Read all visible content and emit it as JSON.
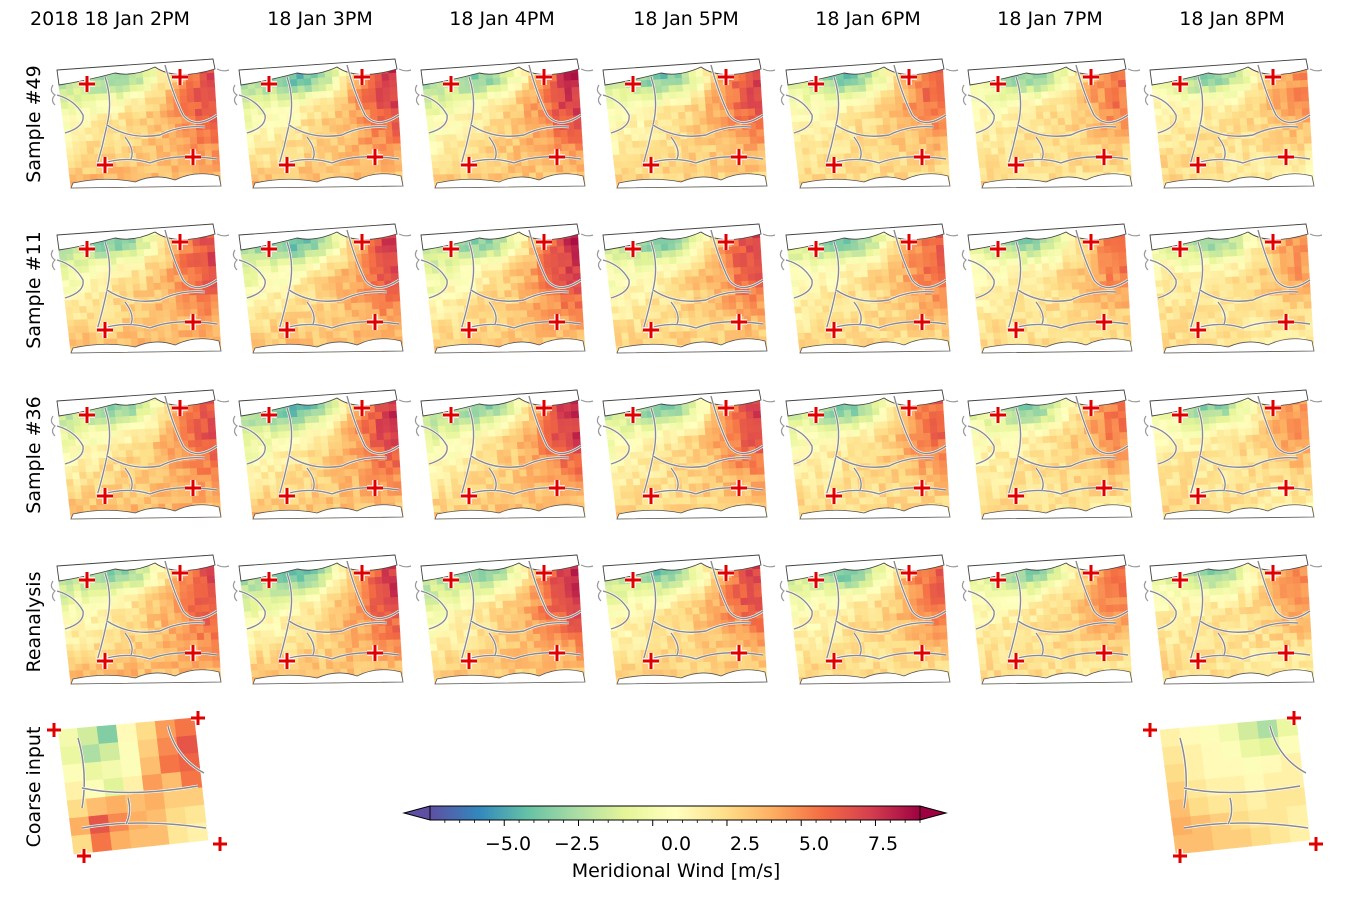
{
  "chart_data": {
    "type": "heatmap",
    "title": "",
    "columns": [
      "2018 18 Jan 2PM",
      "18 Jan 3PM",
      "18 Jan 4PM",
      "18 Jan 5PM",
      "18 Jan 6PM",
      "18 Jan 7PM",
      "18 Jan 8PM"
    ],
    "rows": [
      "Sample #49",
      "Sample #11",
      "Sample #36",
      "Reanalysis",
      "Coarse input"
    ],
    "coarse_input_columns": [
      "2018 18 Jan 2PM",
      "18 Jan 8PM"
    ],
    "colorbar": {
      "label": "Meridional Wind [m/s]",
      "range": [
        -7.5,
        9.0
      ],
      "ticks": [
        -5.0,
        -2.5,
        0.0,
        2.5,
        5.0,
        7.5
      ],
      "tick_labels": [
        "−5.0",
        "−2.5",
        "0.0",
        "2.5",
        "5.0",
        "7.5"
      ],
      "colormap": "Spectral_r",
      "extend": "both"
    },
    "fine_field": {
      "description_anchors": [
        "north-west",
        "north-east",
        "south-west",
        "south-east"
      ],
      "anchor_values_by_time": [
        [
          -2.5,
          6.5,
          4.0,
          3.5
        ],
        [
          -3.5,
          7.5,
          4.0,
          3.0
        ],
        [
          -3.0,
          8.0,
          3.5,
          3.0
        ],
        [
          -1.5,
          7.0,
          3.0,
          2.5
        ],
        [
          -1.0,
          6.0,
          3.0,
          2.0
        ],
        [
          -0.5,
          5.5,
          3.0,
          1.5
        ],
        [
          0.5,
          4.5,
          3.0,
          1.0
        ]
      ],
      "north_trough": [
        -4.0,
        -5.0,
        -4.0,
        -4.5,
        -4.5,
        -4.0,
        -4.0
      ]
    },
    "coarse_grids": {
      "2018 18 Jan 2PM": [
        [
          0.0,
          -1.5,
          -3.5,
          1.0,
          2.5,
          4.5,
          5.5
        ],
        [
          -0.5,
          -2.5,
          -1.5,
          0.5,
          3.0,
          5.0,
          6.5
        ],
        [
          0.5,
          -0.5,
          0.0,
          0.5,
          3.5,
          5.5,
          6.0
        ],
        [
          1.5,
          0.5,
          -1.0,
          1.5,
          4.5,
          3.5,
          5.5
        ],
        [
          2.5,
          3.5,
          4.0,
          3.5,
          4.0,
          3.0,
          3.0
        ],
        [
          4.0,
          6.5,
          5.0,
          4.0,
          3.5,
          2.5,
          2.0
        ],
        [
          2.5,
          5.5,
          4.0,
          3.5,
          3.5,
          2.0,
          1.5
        ]
      ],
      "18 Jan 8PM": [
        [
          1.5,
          1.0,
          0.5,
          0.0,
          -1.5,
          -2.5,
          -0.5
        ],
        [
          2.0,
          1.5,
          1.0,
          0.5,
          -0.5,
          -1.0,
          0.5
        ],
        [
          2.5,
          1.5,
          1.0,
          1.0,
          0.5,
          1.0,
          1.5
        ],
        [
          3.0,
          2.0,
          1.5,
          1.5,
          1.0,
          1.5,
          1.5
        ],
        [
          3.5,
          2.5,
          2.0,
          2.0,
          1.5,
          2.0,
          2.0
        ],
        [
          4.0,
          3.5,
          3.0,
          2.5,
          2.0,
          2.0,
          1.5
        ],
        [
          3.5,
          3.5,
          3.0,
          3.0,
          2.5,
          2.0,
          1.5
        ]
      ]
    }
  },
  "markers": {
    "symbol": "plus",
    "color": "#e00000",
    "count_per_panel": 4
  },
  "colors": {
    "border_lines": "#8a8a8a",
    "water": "#ffffff"
  }
}
